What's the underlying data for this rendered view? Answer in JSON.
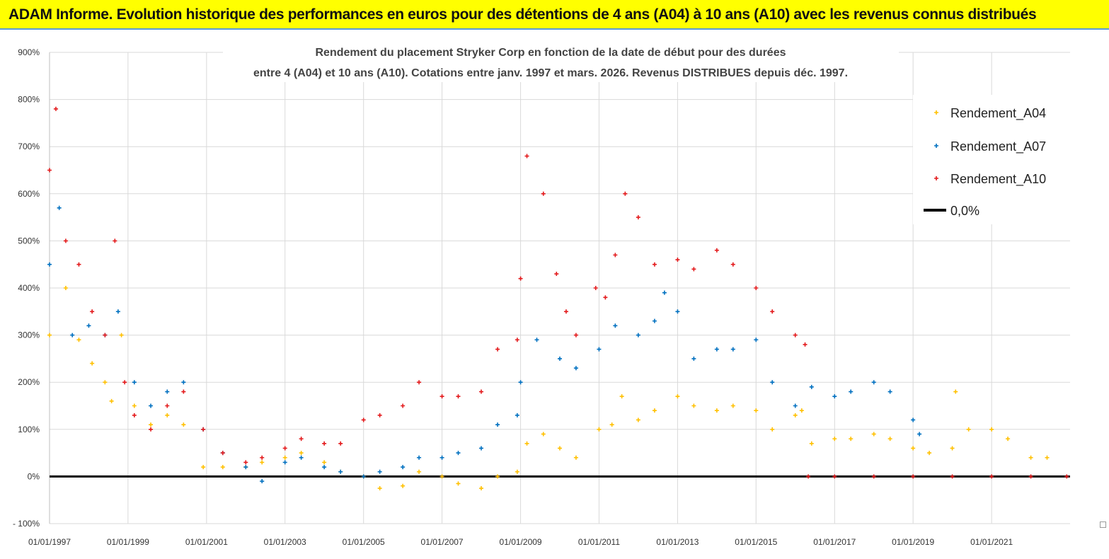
{
  "banner": {
    "title": "ADAM Informe. Evolution historique des performances en euros pour des détentions de 4 ans (A04) à 10 ans (A10) avec les revenus connus distribués",
    "background": "#ffff00"
  },
  "chart_data": {
    "type": "scatter",
    "title_line1": "Rendement du placement Stryker Corp en fonction de la date de début pour des durées",
    "title_line2": "entre 4 (A04) et 10 ans (A10). Cotations entre janv. 1997 et mars. 2026. Revenus DISTRIBUES depuis déc. 1997.",
    "xlabel": "",
    "ylabel": "",
    "xlim": [
      "1997-01-01",
      "2023-01-01"
    ],
    "ylim": [
      -100,
      900
    ],
    "y_ticks": [
      "900%",
      "800%",
      "700%",
      "600%",
      "500%",
      "400%",
      "300%",
      "200%",
      "100%",
      "0%",
      "- 100%"
    ],
    "x_ticks": [
      "01/01/1997",
      "01/01/1999",
      "01/01/2001",
      "01/01/2003",
      "01/01/2005",
      "01/01/2007",
      "01/01/2009",
      "01/01/2011",
      "01/01/2013",
      "01/01/2015",
      "01/01/2017",
      "01/01/2019",
      "01/01/2021"
    ],
    "grid": true,
    "legend_position": "top-right",
    "series": [
      {
        "name": "Rendement_A04",
        "color": "#ffc000",
        "marker": "+",
        "x": [
          "1997-01",
          "1997-06",
          "1997-10",
          "1998-02",
          "1998-06",
          "1998-08",
          "1998-11",
          "1999-03",
          "1999-08",
          "2000-01",
          "2000-06",
          "2000-12",
          "2001-06",
          "2002-01",
          "2002-06",
          "2003-01",
          "2003-06",
          "2004-01",
          "2004-06",
          "2005-01",
          "2005-06",
          "2006-01",
          "2006-06",
          "2007-01",
          "2007-06",
          "2008-01",
          "2008-06",
          "2008-12",
          "2009-03",
          "2009-08",
          "2010-01",
          "2010-06",
          "2011-01",
          "2011-05",
          "2011-08",
          "2012-01",
          "2012-06",
          "2013-01",
          "2013-06",
          "2014-01",
          "2014-06",
          "2015-01",
          "2015-06",
          "2016-01",
          "2016-03",
          "2016-06",
          "2017-01",
          "2017-06",
          "2018-01",
          "2018-06",
          "2019-01",
          "2019-06",
          "2020-01",
          "2020-02",
          "2020-06",
          "2021-01",
          "2021-06",
          "2022-01",
          "2022-06"
        ],
        "y": [
          300,
          400,
          290,
          240,
          200,
          160,
          300,
          150,
          110,
          130,
          110,
          20,
          20,
          20,
          30,
          40,
          50,
          30,
          10,
          0,
          -25,
          -20,
          10,
          0,
          -15,
          -25,
          0,
          10,
          70,
          90,
          60,
          40,
          100,
          110,
          170,
          120,
          140,
          170,
          150,
          140,
          150,
          140,
          100,
          130,
          140,
          70,
          80,
          80,
          90,
          80,
          60,
          50,
          60,
          180,
          100,
          100,
          80,
          40,
          40
        ]
      },
      {
        "name": "Rendement_A07",
        "color": "#0070c0",
        "marker": "+",
        "x": [
          "1997-01",
          "1997-04",
          "1997-08",
          "1998-01",
          "1998-06",
          "1998-10",
          "1999-03",
          "1999-08",
          "2000-01",
          "2000-06",
          "2000-12",
          "2001-06",
          "2002-01",
          "2002-06",
          "2003-01",
          "2003-06",
          "2004-01",
          "2004-06",
          "2005-01",
          "2005-06",
          "2006-01",
          "2006-06",
          "2007-01",
          "2007-06",
          "2008-01",
          "2008-06",
          "2008-12",
          "2009-01",
          "2009-06",
          "2010-01",
          "2010-06",
          "2011-01",
          "2011-06",
          "2012-01",
          "2012-06",
          "2012-09",
          "2013-01",
          "2013-06",
          "2014-01",
          "2014-06",
          "2015-01",
          "2015-06",
          "2016-01",
          "2016-06",
          "2017-01",
          "2017-06",
          "2018-01",
          "2018-06",
          "2019-01",
          "2019-03"
        ],
        "y": [
          450,
          570,
          300,
          320,
          300,
          350,
          200,
          150,
          180,
          200,
          100,
          50,
          20,
          -10,
          30,
          40,
          20,
          10,
          0,
          10,
          20,
          40,
          40,
          50,
          60,
          110,
          130,
          200,
          290,
          250,
          230,
          270,
          320,
          300,
          330,
          390,
          350,
          250,
          270,
          270,
          290,
          200,
          150,
          190,
          170,
          180,
          200,
          180,
          120,
          90
        ]
      },
      {
        "name": "Rendement_A10",
        "color": "#e31a1c",
        "marker": "+",
        "x": [
          "1997-01",
          "1997-03",
          "1997-06",
          "1997-10",
          "1998-02",
          "1998-06",
          "1998-09",
          "1998-12",
          "1999-03",
          "1999-08",
          "2000-01",
          "2000-06",
          "2000-12",
          "2001-06",
          "2002-01",
          "2002-06",
          "2003-01",
          "2003-06",
          "2004-01",
          "2004-06",
          "2005-01",
          "2005-06",
          "2006-01",
          "2006-06",
          "2007-01",
          "2007-06",
          "2008-01",
          "2008-06",
          "2008-12",
          "2009-01",
          "2009-03",
          "2009-08",
          "2009-12",
          "2010-03",
          "2010-06",
          "2010-12",
          "2011-03",
          "2011-06",
          "2011-09",
          "2012-01",
          "2012-06",
          "2013-01",
          "2013-06",
          "2014-01",
          "2014-06",
          "2015-01",
          "2015-06",
          "2016-01",
          "2016-04",
          "2016-05",
          "2017-01",
          "2018-01",
          "2019-01",
          "2020-01",
          "2021-01",
          "2022-01",
          "2022-12"
        ],
        "y": [
          650,
          780,
          500,
          450,
          350,
          300,
          500,
          200,
          130,
          100,
          150,
          180,
          100,
          50,
          30,
          40,
          60,
          80,
          70,
          70,
          120,
          130,
          150,
          200,
          170,
          170,
          180,
          270,
          290,
          420,
          680,
          600,
          430,
          350,
          300,
          400,
          380,
          470,
          600,
          550,
          450,
          460,
          440,
          480,
          450,
          400,
          350,
          300,
          280,
          0,
          0,
          0,
          0,
          0,
          0,
          0,
          0
        ]
      },
      {
        "name": "0,0%",
        "color": "#000000",
        "marker": "line",
        "x": [
          "1997-01-01",
          "2022-12-31"
        ],
        "y": [
          0,
          0
        ]
      }
    ]
  }
}
